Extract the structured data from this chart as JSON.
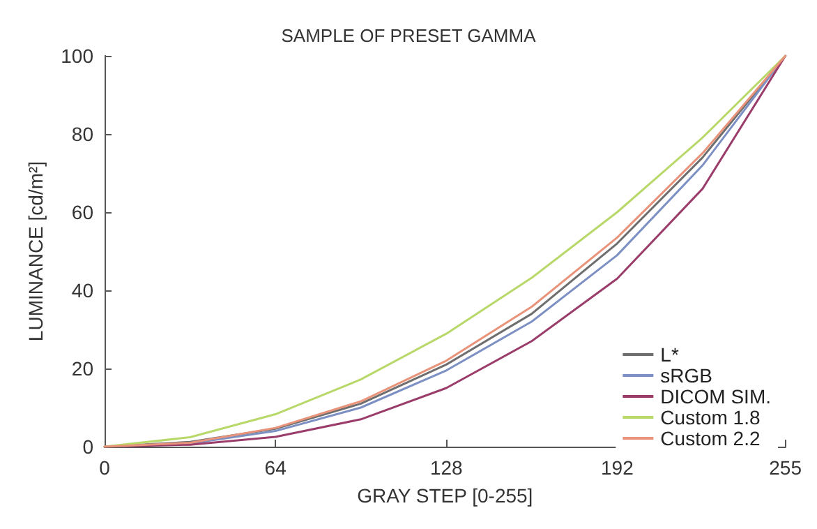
{
  "chart_data": {
    "type": "line",
    "title": "SAMPLE OF PRESET GAMMA",
    "xlabel": "GRAY STEP [0-255]",
    "ylabel": "LUMINANCE [cd/m²]",
    "x": [
      0,
      32,
      64,
      96,
      128,
      160,
      192,
      224,
      255
    ],
    "series": [
      {
        "name": "L*",
        "color": "#6e6e6e",
        "values": [
          0,
          1.2,
          4.6,
          11,
          21,
          34,
          52,
          74,
          100
        ]
      },
      {
        "name": "sRGB",
        "color": "#7d90c4",
        "values": [
          0,
          0.8,
          4,
          10,
          19.5,
          32,
          49,
          72,
          100
        ]
      },
      {
        "name": "DICOM SIM.",
        "color": "#9b3d6b",
        "values": [
          0,
          0.5,
          2.5,
          7,
          15,
          27,
          43,
          66,
          100
        ]
      },
      {
        "name": "Custom 1.8",
        "color": "#b8d86a",
        "values": [
          0,
          2.4,
          8.3,
          17.2,
          28.9,
          43.2,
          60,
          79.1,
          100
        ]
      },
      {
        "name": "Custom 2.2",
        "color": "#e8937a",
        "values": [
          0,
          1,
          4.8,
          11.6,
          22,
          35.8,
          53.5,
          75.1,
          100
        ]
      }
    ],
    "xlim": [
      0,
      255
    ],
    "xticks": [
      0,
      64,
      128,
      192,
      255
    ],
    "ylim": [
      0,
      100
    ],
    "yticks": [
      0,
      20,
      40,
      60,
      80,
      100
    ],
    "grid": false,
    "legend": "bottom right",
    "marker": "none",
    "line_style": "solid"
  }
}
